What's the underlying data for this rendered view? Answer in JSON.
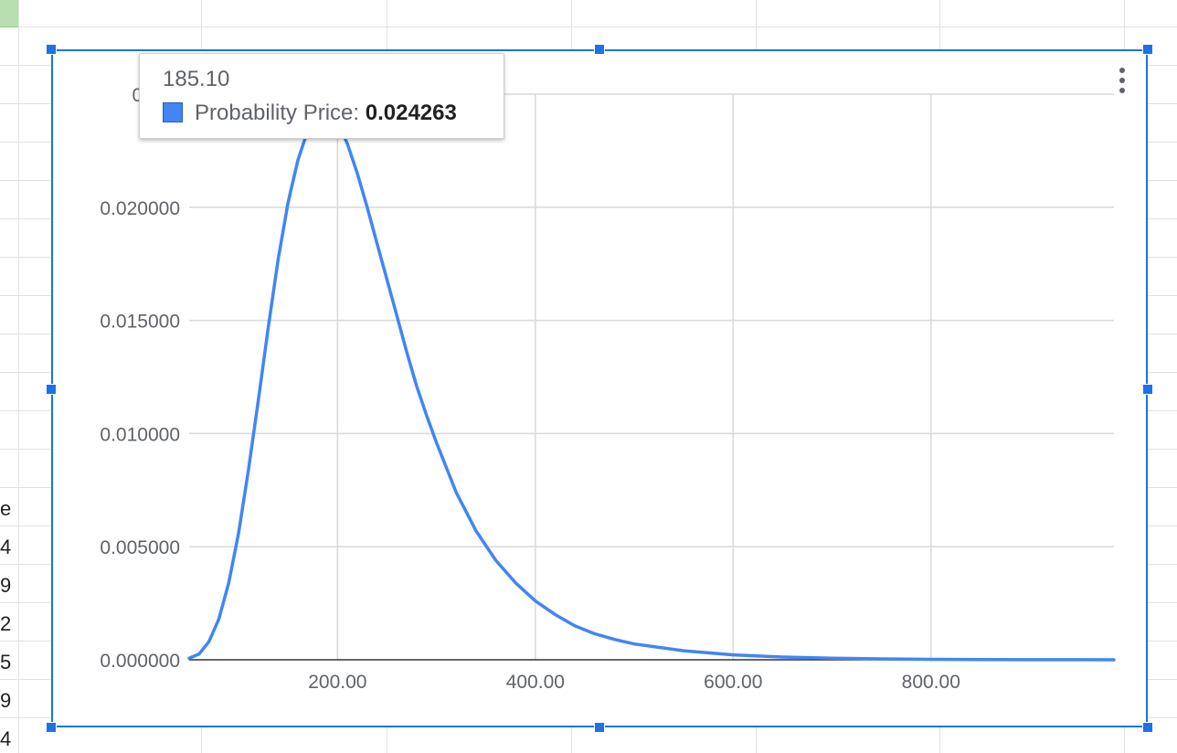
{
  "sheet": {
    "row_fragments": [
      "e",
      "4",
      "9",
      "2",
      "5",
      "9",
      "4"
    ]
  },
  "colors": {
    "series": "#4285f4",
    "selection": "#1a73e8",
    "grid": "#d9d9d9",
    "axis": "#333333",
    "label": "#5f6368"
  },
  "tooltip": {
    "x_value": "185.10",
    "series_label": "Probability Price:",
    "series_value": "0.024263"
  },
  "chart_menu_icon": "more-vert-icon",
  "chart_data": {
    "type": "line",
    "title": "",
    "xlabel": "",
    "ylabel": "",
    "grid": true,
    "legend": "none",
    "xlim": [
      50,
      985
    ],
    "ylim": [
      0,
      0.025
    ],
    "x_ticks": [
      200,
      400,
      600,
      800
    ],
    "x_tick_labels": [
      "200.00",
      "400.00",
      "600.00",
      "800.00"
    ],
    "y_ticks": [
      0,
      0.005,
      0.01,
      0.015,
      0.02,
      0.025
    ],
    "y_tick_labels": [
      "0.000000",
      "0.005000",
      "0.010000",
      "0.015000",
      "0.020000",
      "0.025"
    ],
    "series": [
      {
        "name": "Probability Price",
        "x": [
          50,
          60,
          70,
          80,
          90,
          100,
          110,
          120,
          130,
          140,
          150,
          160,
          170,
          180,
          185,
          190,
          200,
          210,
          220,
          230,
          240,
          250,
          260,
          270,
          280,
          290,
          300,
          320,
          340,
          360,
          380,
          400,
          420,
          440,
          460,
          480,
          500,
          550,
          600,
          650,
          700,
          750,
          800,
          850,
          900,
          950,
          985
        ],
        "y": [
          7e-05,
          0.00025,
          0.0008,
          0.0018,
          0.0034,
          0.0056,
          0.0084,
          0.0115,
          0.0147,
          0.0177,
          0.0202,
          0.0221,
          0.0234,
          0.02415,
          0.02426,
          0.02425,
          0.0238,
          0.0228,
          0.0215,
          0.02,
          0.0184,
          0.0168,
          0.0152,
          0.0136,
          0.0121,
          0.0108,
          0.0096,
          0.0074,
          0.0057,
          0.0044,
          0.0034,
          0.0026,
          0.002,
          0.0015,
          0.00115,
          0.0009,
          0.0007,
          0.0004,
          0.00022,
          0.00012,
          7e-05,
          4e-05,
          2e-05,
          1e-05,
          6e-06,
          3e-06,
          2e-06
        ]
      }
    ]
  }
}
